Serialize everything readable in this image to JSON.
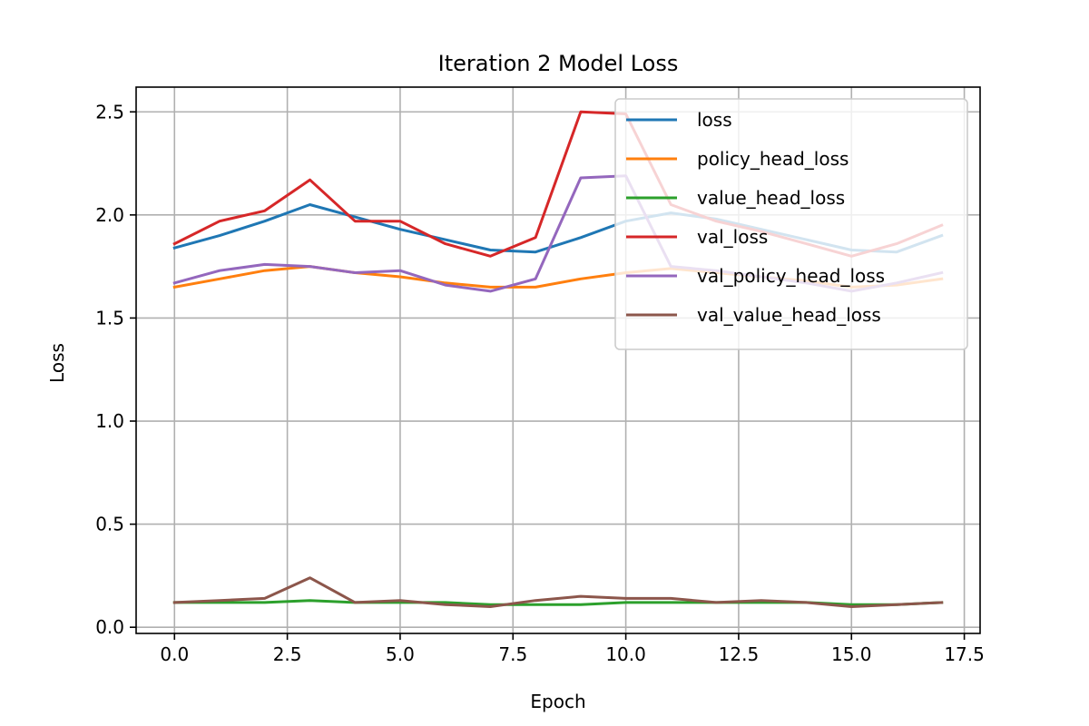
{
  "chart_data": {
    "type": "line",
    "title": "Iteration 2 Model Loss",
    "xlabel": "Epoch",
    "ylabel": "Loss",
    "xlim": [
      -0.85,
      17.85
    ],
    "ylim": [
      -0.03,
      2.62
    ],
    "xticks": [
      0,
      2.5,
      5,
      7.5,
      10,
      12.5,
      15,
      17.5
    ],
    "xtick_labels": [
      "0.0",
      "2.5",
      "5.0",
      "7.5",
      "10.0",
      "12.5",
      "15.0",
      "17.5"
    ],
    "yticks": [
      0,
      0.5,
      1.0,
      1.5,
      2.0,
      2.5
    ],
    "ytick_labels": [
      "0.0",
      "0.5",
      "1.0",
      "1.5",
      "2.0",
      "2.5"
    ],
    "grid": true,
    "legend_position": "top-right",
    "x": [
      0,
      1,
      2,
      3,
      4,
      5,
      6,
      7,
      8,
      9,
      10,
      11,
      12,
      13,
      14,
      15,
      16,
      17
    ],
    "series": [
      {
        "name": "loss",
        "color": "#1f77b4",
        "values": [
          1.84,
          1.9,
          1.97,
          2.05,
          1.99,
          1.93,
          1.88,
          1.83,
          1.82,
          1.89,
          1.97,
          2.01,
          1.98,
          1.93,
          1.88,
          1.83,
          1.82,
          1.9
        ]
      },
      {
        "name": "policy_head_loss",
        "color": "#ff7f0e",
        "values": [
          1.65,
          1.69,
          1.73,
          1.75,
          1.72,
          1.7,
          1.67,
          1.65,
          1.65,
          1.69,
          1.72,
          1.74,
          1.72,
          1.7,
          1.68,
          1.65,
          1.66,
          1.69
        ]
      },
      {
        "name": "value_head_loss",
        "color": "#2ca02c",
        "values": [
          0.12,
          0.12,
          0.12,
          0.13,
          0.12,
          0.12,
          0.12,
          0.11,
          0.11,
          0.11,
          0.12,
          0.12,
          0.12,
          0.12,
          0.12,
          0.11,
          0.11,
          0.12
        ]
      },
      {
        "name": "val_loss",
        "color": "#d62728",
        "values": [
          1.86,
          1.97,
          2.02,
          2.17,
          1.97,
          1.97,
          1.86,
          1.8,
          1.89,
          2.5,
          2.49,
          2.05,
          1.97,
          1.92,
          1.86,
          1.8,
          1.86,
          1.95
        ]
      },
      {
        "name": "val_policy_head_loss",
        "color": "#9467bd",
        "values": [
          1.67,
          1.73,
          1.76,
          1.75,
          1.72,
          1.73,
          1.66,
          1.63,
          1.69,
          2.18,
          2.19,
          1.75,
          1.73,
          1.7,
          1.67,
          1.63,
          1.67,
          1.72
        ]
      },
      {
        "name": "val_value_head_loss",
        "color": "#8c564b",
        "values": [
          0.12,
          0.13,
          0.14,
          0.24,
          0.12,
          0.13,
          0.11,
          0.1,
          0.13,
          0.15,
          0.14,
          0.14,
          0.12,
          0.13,
          0.12,
          0.1,
          0.11,
          0.12
        ]
      }
    ]
  }
}
